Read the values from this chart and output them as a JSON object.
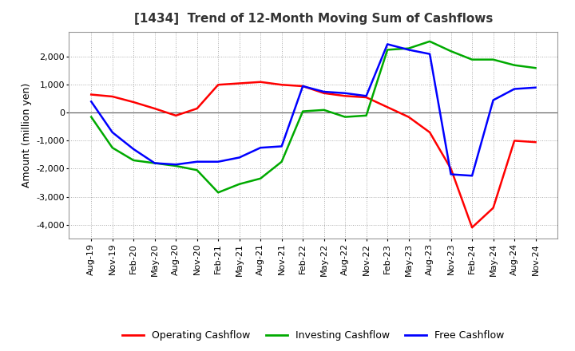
{
  "title": "[1434]  Trend of 12-Month Moving Sum of Cashflows",
  "ylabel": "Amount (million yen)",
  "x_labels": [
    "Aug-19",
    "Nov-19",
    "Feb-20",
    "May-20",
    "Aug-20",
    "Nov-20",
    "Feb-21",
    "May-21",
    "Aug-21",
    "Nov-21",
    "Feb-22",
    "May-22",
    "Aug-22",
    "Nov-22",
    "Feb-23",
    "May-23",
    "Aug-23",
    "Nov-23",
    "Feb-24",
    "May-24",
    "Aug-24",
    "Nov-24"
  ],
  "operating": [
    650,
    580,
    380,
    150,
    -100,
    150,
    1000,
    1050,
    1100,
    1000,
    950,
    700,
    600,
    550,
    200,
    -150,
    -700,
    -2000,
    -4100,
    -3400,
    -1000,
    -1050
  ],
  "investing": [
    -150,
    -1250,
    -1700,
    -1800,
    -1900,
    -2050,
    -2850,
    -2550,
    -2350,
    -1750,
    50,
    100,
    -150,
    -100,
    2250,
    2300,
    2550,
    2200,
    1900,
    1900,
    1700,
    1600
  ],
  "free": [
    400,
    -700,
    -1300,
    -1800,
    -1850,
    -1750,
    -1750,
    -1600,
    -1250,
    -1200,
    950,
    750,
    700,
    600,
    2450,
    2250,
    2100,
    -2200,
    -2250,
    450,
    850,
    900
  ],
  "ylim": [
    -4500,
    2900
  ],
  "yticks": [
    -4000,
    -3000,
    -2000,
    -1000,
    0,
    1000,
    2000
  ],
  "operating_color": "#ff0000",
  "investing_color": "#00aa00",
  "free_color": "#0000ff",
  "line_width": 1.8,
  "background_color": "#ffffff",
  "grid_color": "#aaaaaa",
  "title_fontsize": 11,
  "ylabel_fontsize": 9,
  "tick_fontsize": 8,
  "legend_fontsize": 9
}
